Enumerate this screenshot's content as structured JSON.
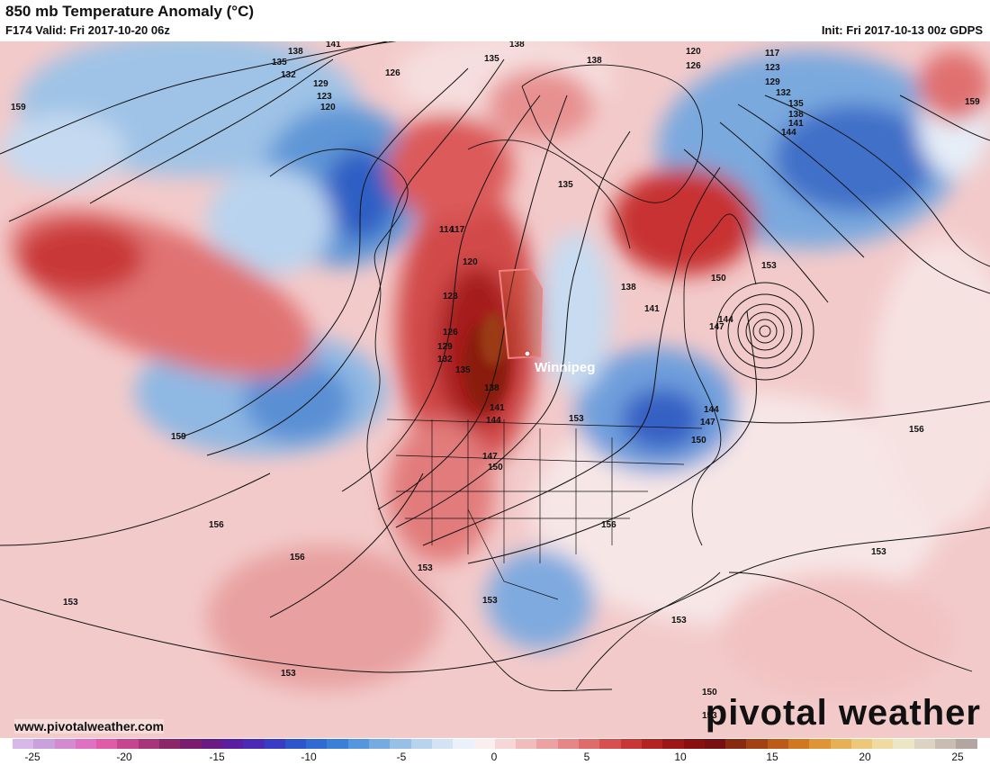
{
  "header": {
    "title": "850 mb Temperature Anomaly (°C)",
    "valid": "F174 Valid: Fri 2017-10-20 06z",
    "init": "Init: Fri 2017-10-13 00z GDPS"
  },
  "map": {
    "city_label": "Winnipeg",
    "height_labels": [
      "159",
      "141",
      "138",
      "135",
      "132",
      "129",
      "123",
      "120",
      "126",
      "138",
      "135",
      "138",
      "120",
      "126",
      "117",
      "123",
      "129",
      "132",
      "135",
      "138",
      "141",
      "144",
      "159",
      "135",
      "114",
      "117",
      "120",
      "123",
      "126",
      "129",
      "132",
      "135",
      "138",
      "141",
      "144",
      "147",
      "150",
      "153",
      "138",
      "141",
      "144",
      "147",
      "150",
      "153",
      "156",
      "144",
      "147",
      "150",
      "159",
      "156",
      "156",
      "153",
      "156",
      "153",
      "153",
      "153",
      "153",
      "153",
      "150",
      "153"
    ]
  },
  "branding": {
    "website": "www.pivotalweather.com",
    "logo": "pivotal weather"
  },
  "colorbar": {
    "tick_labels": [
      "-25",
      "-20",
      "-15",
      "-10",
      "-5",
      "0",
      "5",
      "10",
      "15",
      "20",
      "25"
    ],
    "colors": [
      "#d8b8e8",
      "#c9a2dd",
      "#d38ad0",
      "#e070c4",
      "#e05aa8",
      "#c7458f",
      "#a83479",
      "#8b2669",
      "#7a1d6f",
      "#6a1a85",
      "#5b1ea0",
      "#4b2ab4",
      "#3a3cc4",
      "#2e55c9",
      "#2f6bd0",
      "#3a80d6",
      "#5596dc",
      "#76abe1",
      "#98c0e7",
      "#b7d3ee",
      "#d3e3f4",
      "#eaf1f8",
      "#fbeeee",
      "#f6d6d6",
      "#f1bcbc",
      "#eca2a2",
      "#e68787",
      "#e06b6b",
      "#d84f4f",
      "#c93636",
      "#b42222",
      "#9e1717",
      "#8a1010",
      "#7a0f12",
      "#8a2a10",
      "#a34112",
      "#bd5a18",
      "#d17722",
      "#df9436",
      "#e8b055",
      "#eec87a",
      "#efdba0",
      "#ece6c4",
      "#ddd3c2",
      "#c9bcb2",
      "#b3a59f"
    ]
  }
}
